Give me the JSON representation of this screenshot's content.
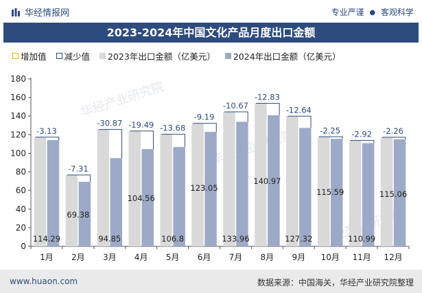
{
  "header": {
    "brand_name": "华经情报网",
    "slogan_left": "专业严谨",
    "slogan_dot": "●",
    "slogan_right": "客观科学"
  },
  "watermark": "华经产业研究院",
  "footer": {
    "url": "www.huaon.com",
    "source": "数据来源：中国海关，华经产业研究院整理"
  },
  "colors": {
    "title_bg": "#2d4b7d",
    "bar_2023": "#d9d9d9",
    "bar_2024": "#9daac7",
    "increase": "#e8b400",
    "decrease": "#2d4b7d"
  },
  "chart_data": {
    "type": "bar",
    "title": "2023-2024年中国文化产品月度出口金额",
    "categories": [
      "1月",
      "2月",
      "3月",
      "4月",
      "5月",
      "6月",
      "7月",
      "8月",
      "9月",
      "10月",
      "11月",
      "12月"
    ],
    "series": [
      {
        "name": "2023年出口金额（亿美元）",
        "values": [
          117.42,
          76.69,
          125.72,
          124.05,
          120.48,
          132.24,
          144.63,
          153.8,
          139.96,
          117.84,
          113.91,
          117.32
        ]
      },
      {
        "name": "2024年出口金额（亿美元）",
        "values": [
          114.29,
          69.38,
          94.85,
          104.56,
          106.8,
          123.05,
          133.96,
          140.97,
          127.32,
          115.59,
          110.99,
          115.06
        ]
      }
    ],
    "differences": [
      -3.13,
      -7.31,
      -30.87,
      -19.49,
      -13.68,
      -9.19,
      -10.67,
      -12.83,
      -12.64,
      -2.25,
      -2.92,
      -2.26
    ],
    "difference_labels": [
      "-3.13",
      "-7.31",
      "-30.87",
      "-19.49",
      "-13.68",
      "-9.19",
      "-10.67",
      "-12.83",
      "-12.64",
      "-2.25",
      "-2.92",
      "-2.26"
    ],
    "value_labels_2024": [
      "114.29",
      "69.38",
      "94.85",
      "104.56",
      "106.8",
      "123.05",
      "133.96",
      "140.97",
      "127.32",
      "115.59",
      "110.99",
      "115.06"
    ],
    "legend": [
      "增加值",
      "减少值",
      "2023年出口金额（亿美元）",
      "2024年出口金额（亿美元）"
    ],
    "ylim": [
      0,
      180
    ],
    "yticks": [
      0,
      20,
      40,
      60,
      80,
      100,
      120,
      140,
      160,
      180
    ],
    "grid": false,
    "legend_position": "top-left"
  }
}
